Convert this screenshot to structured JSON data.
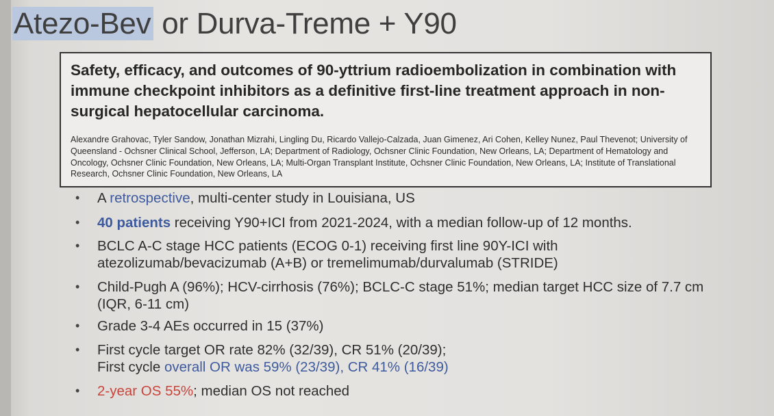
{
  "title": {
    "highlighted": "Atezo-Bev",
    "rest": " or Durva-Treme + Y90"
  },
  "abstract": {
    "title": "Safety, efficacy, and outcomes of 90-yttrium radioembolization in combination with immune checkpoint inhibitors as a definitive first-line treatment approach in non-surgical hepatocellular carcinoma.",
    "authors": "Alexandre Grahovac, Tyler Sandow, Jonathan Mizrahi, Lingling Du, Ricardo Vallejo-Calzada, Juan Gimenez, Ari Cohen, Kelley Nunez, Paul Thevenot; University of Queensland - Ochsner Clinical School, Jefferson, LA; Department of Radiology, Ochsner Clinic Foundation, New Orleans, LA; Department of Hematology and Oncology, Ochsner Clinic Foundation, New Orleans, LA; Multi-Organ Transplant Institute, Ochsner Clinic Foundation, New Orleans, LA; Institute of Translational Research, Ochsner Clinic Foundation, New Orleans, LA"
  },
  "bullet_char": "•",
  "bullets": {
    "b1": {
      "a": "A ",
      "b": "retrospective",
      "c": ", multi-center study in Louisiana, US"
    },
    "b2": {
      "a": "40 patients",
      "b": " receiving Y90+ICI from 2021-2024, with a median follow-up of 12 months."
    },
    "b3": {
      "line1": "BCLC A-C stage HCC patients (ECOG 0-1) receiving first line 90Y-ICI with",
      "line2": "atezolizumab/bevacizumab (A+B) or tremelimumab/durvalumab (STRIDE)"
    },
    "b4": {
      "line1": "Child-Pugh A (96%); HCV-cirrhosis (76%); BCLC-C stage 51%; median target HCC size of 7.7 cm",
      "line2": "(IQR, 6-11 cm)"
    },
    "b5": {
      "text": "Grade 3-4 AEs occurred in 15 (37%)"
    },
    "b6": {
      "line1": "First cycle target OR rate 82% (32/39), CR 51% (20/39);",
      "line2a": "First cycle ",
      "line2b": "overall OR was 59% (23/39), CR 41% (16/39)"
    },
    "b7": {
      "a": "2-year OS 55%",
      "b": "; median OS not reached"
    }
  },
  "colors": {
    "highlight": "#b9c8de",
    "blue_text": "#3d5a9e",
    "red_text": "#c8443a"
  }
}
